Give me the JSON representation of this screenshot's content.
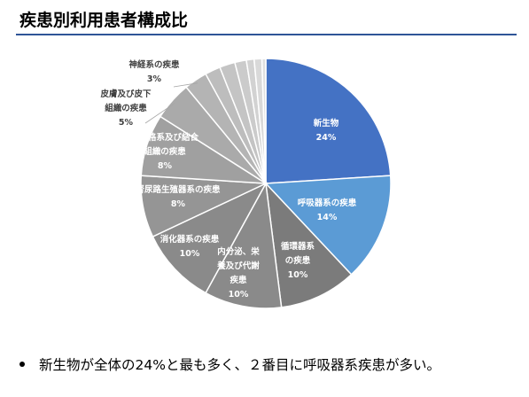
{
  "chart_data": {
    "type": "pie",
    "title": "疾患別利用患者構成比",
    "categories": [
      "新生物",
      "呼吸器系の疾患",
      "循環器系\nの疾患",
      "内分泌、栄\n養及び代謝\n疾患",
      "消化器系の疾患",
      "腎尿路生殖器系の疾患",
      "筋骨格系及び結合\n組織の疾患",
      "皮膚及び皮下\n組織の疾患",
      "神経系の疾患",
      null,
      null,
      null,
      null,
      null,
      null
    ],
    "values": [
      24,
      14,
      10,
      10,
      10,
      8,
      8,
      5,
      3,
      2,
      2,
      1.5,
      1,
      1,
      0.5
    ],
    "value_labels": [
      "24%",
      "14%",
      "10%",
      "10%",
      "10%",
      "8%",
      "8%",
      "5%",
      "3%",
      null,
      null,
      null,
      null,
      null,
      null
    ],
    "colors": [
      "#4472c4",
      "#5b9bd5",
      "#7b7b7b",
      "#8a8a8a",
      "#8a8a8a",
      "#959595",
      "#a0a0a0",
      "#aaaaaa",
      "#b4b4b4",
      "#bdbdbd",
      "#c4c4c4",
      "#cbcbcb",
      "#d2d2d2",
      "#d9d9d9",
      "#e0e0e0"
    ]
  },
  "bullets": [
    "新生物が全体の24%と最も多く、２番目に呼吸器系疾患が多い。"
  ]
}
